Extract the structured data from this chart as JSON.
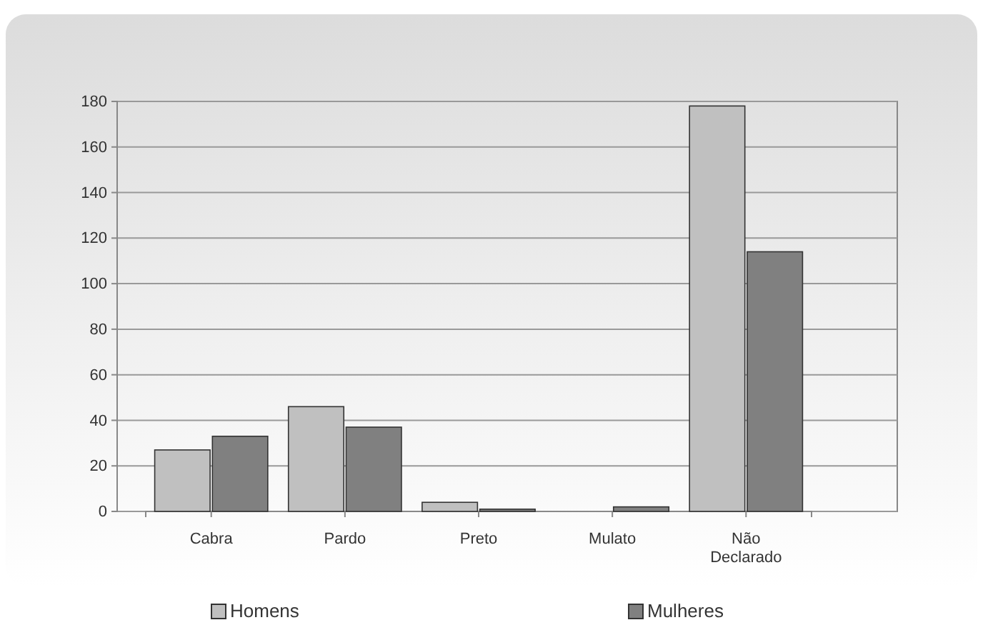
{
  "chart_data": {
    "type": "bar",
    "categories": [
      "Cabra",
      "Pardo",
      "Preto",
      "Mulato",
      "Não Declarado"
    ],
    "series": [
      {
        "name": "Homens",
        "color": "#c0c0c0",
        "values": [
          27,
          46,
          4,
          0,
          178
        ]
      },
      {
        "name": "Mulheres",
        "color": "#808080",
        "values": [
          33,
          37,
          1,
          2,
          114
        ]
      }
    ],
    "ylim": [
      0,
      180
    ],
    "yticks": [
      0,
      20,
      40,
      60,
      80,
      100,
      120,
      140,
      160,
      180
    ],
    "grid": "y",
    "legend": "bottom"
  }
}
